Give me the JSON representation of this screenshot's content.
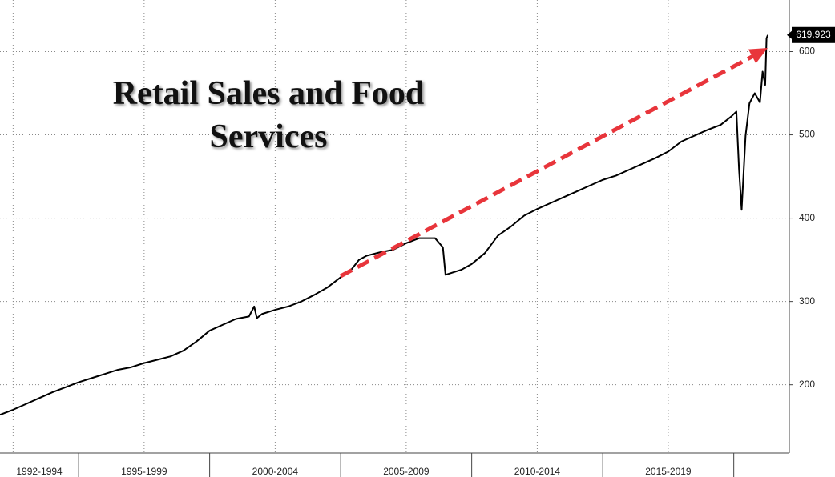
{
  "chart_data": {
    "type": "line",
    "title": "Retail Sales and Food Services",
    "x": [
      1992.0,
      1992.5,
      1993.0,
      1993.5,
      1994.0,
      1994.5,
      1995.0,
      1995.5,
      1996.0,
      1996.5,
      1997.0,
      1997.5,
      1998.0,
      1998.5,
      1999.0,
      1999.5,
      2000.0,
      2000.5,
      2001.0,
      2001.5,
      2001.7,
      2001.8,
      2002.0,
      2002.5,
      2003.0,
      2003.5,
      2004.0,
      2004.5,
      2005.0,
      2005.4,
      2005.7,
      2006.0,
      2006.5,
      2007.0,
      2007.5,
      2008.0,
      2008.6,
      2008.9,
      2009.0,
      2009.3,
      2009.6,
      2010.0,
      2010.5,
      2011.0,
      2011.5,
      2012.0,
      2012.5,
      2013.0,
      2013.5,
      2014.0,
      2014.5,
      2015.0,
      2015.5,
      2016.0,
      2016.5,
      2017.0,
      2017.5,
      2018.0,
      2018.5,
      2019.0,
      2019.5,
      2019.9,
      2020.1,
      2020.2,
      2020.3,
      2020.45,
      2020.6,
      2020.8,
      2021.0,
      2021.1,
      2021.2,
      2021.25,
      2021.3
    ],
    "series": [
      {
        "name": "Retail Sales and Food Services",
        "color": "#000000",
        "values": [
          164,
          170,
          177,
          184,
          191,
          197,
          203,
          208,
          213,
          218,
          221,
          226,
          230,
          234,
          241,
          252,
          265,
          272,
          279,
          282,
          294,
          280,
          285,
          290,
          294,
          300,
          308,
          317,
          329,
          338,
          350,
          355,
          359,
          362,
          370,
          376,
          376,
          365,
          332,
          335,
          338,
          345,
          358,
          379,
          390,
          403,
          411,
          418,
          425,
          432,
          439,
          446,
          451,
          458,
          465,
          472,
          480,
          492,
          499,
          506,
          512,
          522,
          528,
          459,
          410,
          499,
          538,
          550,
          539,
          576,
          560,
          616,
          619.923
        ]
      }
    ],
    "xlim": [
      1992,
      2022.12
    ],
    "ylim": [
      118,
      662
    ],
    "yticks": [
      200,
      300,
      400,
      500,
      600
    ],
    "grid": true,
    "xgrid": [
      1992.5,
      1997.5,
      2002.5,
      2007.5,
      2012.5,
      2017.5
    ],
    "periods": [
      {
        "label": "1992-1994",
        "start": 1992,
        "end": 1995
      },
      {
        "label": "1995-1999",
        "start": 1995,
        "end": 2000
      },
      {
        "label": "2000-2004",
        "start": 2000,
        "end": 2005
      },
      {
        "label": "2005-2009",
        "start": 2005,
        "end": 2010
      },
      {
        "label": "2010-2014",
        "start": 2010,
        "end": 2015
      },
      {
        "label": "2015-2019",
        "start": 2015,
        "end": 2020
      }
    ]
  }
}
